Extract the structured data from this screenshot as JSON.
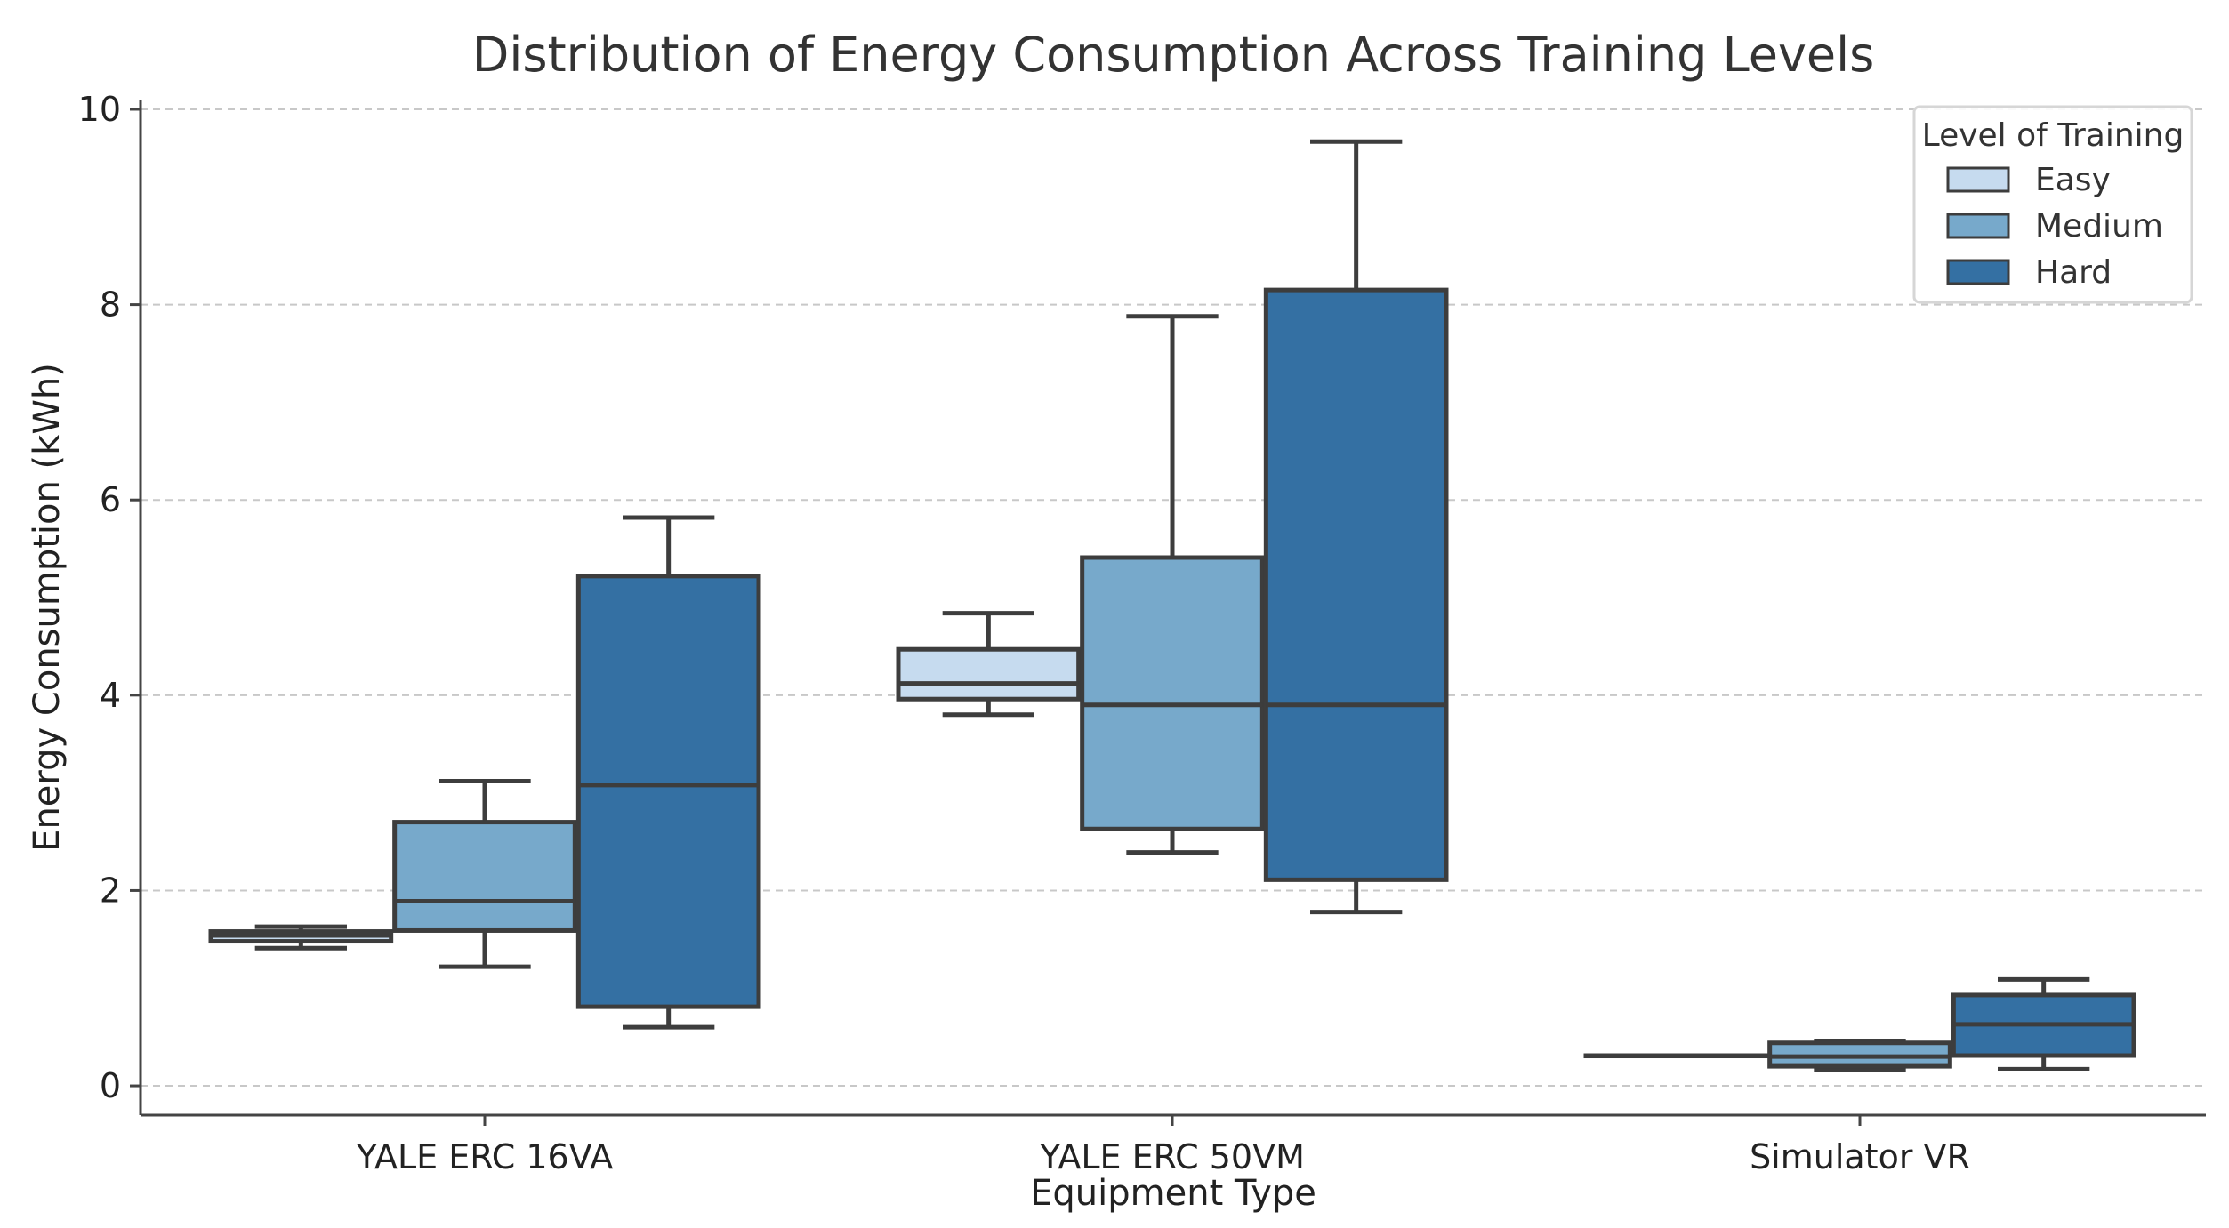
{
  "chart_data": {
    "type": "boxplot",
    "title": "Distribution of Energy Consumption Across Training Levels",
    "xlabel": "Equipment Type",
    "ylabel": "Energy Consumption (kWh)",
    "ylim": [
      -0.3,
      10.1
    ],
    "yticks": [
      0,
      2,
      4,
      6,
      8,
      10
    ],
    "grid": "y-dashed",
    "categories": [
      "YALE ERC 16VA",
      "YALE ERC 50VM",
      "Simulator VR"
    ],
    "legend": {
      "title": "Level of Training",
      "position": "top-right"
    },
    "series": [
      {
        "name": "Easy",
        "color": "#c6dbef",
        "boxes": [
          {
            "whislo": 1.41,
            "q1": 1.48,
            "med": 1.54,
            "q3": 1.58,
            "whishi": 1.63
          },
          {
            "whislo": 3.8,
            "q1": 3.96,
            "med": 4.12,
            "q3": 4.47,
            "whishi": 4.84
          },
          {
            "whislo": 0.31,
            "q1": 0.31,
            "med": 0.31,
            "q3": 0.31,
            "whishi": 0.31
          }
        ]
      },
      {
        "name": "Medium",
        "color": "#77a9cb",
        "boxes": [
          {
            "whislo": 1.22,
            "q1": 1.59,
            "med": 1.89,
            "q3": 2.7,
            "whishi": 3.12
          },
          {
            "whislo": 2.39,
            "q1": 2.63,
            "med": 3.9,
            "q3": 5.41,
            "whishi": 7.88
          },
          {
            "whislo": 0.16,
            "q1": 0.2,
            "med": 0.3,
            "q3": 0.44,
            "whishi": 0.46
          }
        ]
      },
      {
        "name": "Hard",
        "color": "#3470a3",
        "boxes": [
          {
            "whislo": 0.6,
            "q1": 0.81,
            "med": 3.08,
            "q3": 5.22,
            "whishi": 5.82
          },
          {
            "whislo": 1.78,
            "q1": 2.11,
            "med": 3.9,
            "q3": 8.15,
            "whishi": 9.67
          },
          {
            "whislo": 0.17,
            "q1": 0.31,
            "med": 0.63,
            "q3": 0.93,
            "whishi": 1.09
          }
        ]
      }
    ]
  }
}
